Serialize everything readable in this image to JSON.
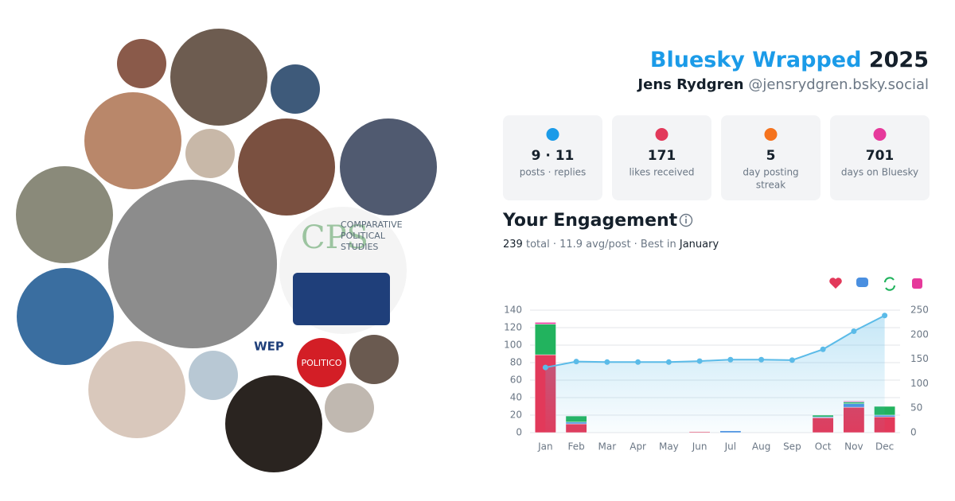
{
  "header": {
    "title": "Bluesky Wrapped",
    "year": "2025",
    "name": "Jens Rydgren",
    "handle": "@jensrydgren.bsky.social"
  },
  "avatar_logos": {
    "wep": "WEP",
    "politico": "POLITICO",
    "cps": "CPS",
    "cps_name": [
      "COMPARATIVE",
      "POLITICAL",
      "STUDIES"
    ]
  },
  "stats": [
    {
      "value": "9 · 11",
      "label": [
        "posts · replies"
      ]
    },
    {
      "value": "171",
      "label": [
        "likes received"
      ]
    },
    {
      "value": "5",
      "label": [
        "day posting",
        "streak"
      ]
    },
    {
      "value": "701",
      "label": [
        "days on Bluesky"
      ]
    }
  ],
  "engagement": {
    "title": "Your Engagement",
    "summary": [
      "239",
      "total · 11.9 avg/post · Best in",
      "January"
    ]
  },
  "chart_data": {
    "type": "bar",
    "stacked": true,
    "grid": true,
    "categories": [
      "Jan",
      "Feb",
      "Mar",
      "Apr",
      "May",
      "Jun",
      "Jul",
      "Aug",
      "Sep",
      "Oct",
      "Nov",
      "Dec"
    ],
    "series": [
      {
        "color": "#e2395a",
        "values": [
          89,
          10,
          0,
          0,
          0,
          1,
          0,
          0,
          0,
          17,
          29,
          18
        ]
      },
      {
        "color": "#4a8fe0",
        "values": [
          0,
          2,
          0,
          0,
          0,
          0,
          2,
          0,
          0,
          1,
          4,
          2
        ]
      },
      {
        "color": "#22b35e",
        "values": [
          35,
          7,
          0,
          0,
          0,
          0,
          0,
          0,
          0,
          2,
          2,
          10
        ]
      },
      {
        "color": "#e6399b",
        "values": [
          2,
          0,
          0,
          0,
          0,
          0,
          0,
          0,
          0,
          0,
          1,
          0
        ]
      },
      {
        "type": "line",
        "axis": "y2",
        "color": "#5bbbe8",
        "values": [
          133,
          145,
          144,
          144,
          144,
          146,
          149,
          149,
          148,
          170,
          207,
          239
        ]
      }
    ],
    "ylim": [
      0,
      140
    ],
    "yticks": [
      0,
      20,
      40,
      60,
      80,
      100,
      120,
      140
    ],
    "y2lim": [
      0,
      250
    ],
    "y2ticks": [
      0,
      50,
      100,
      150,
      200,
      250
    ]
  }
}
